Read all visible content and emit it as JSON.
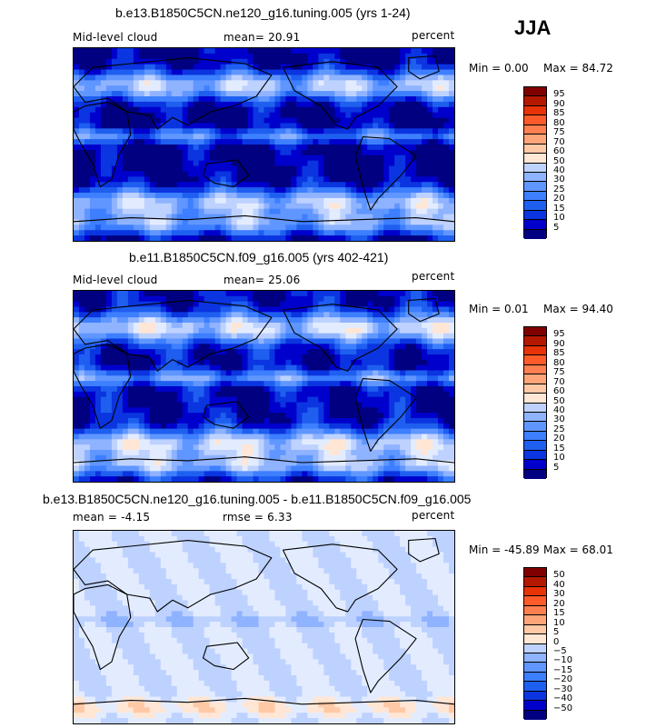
{
  "season": "JJA",
  "palette": {
    "diff": [
      "#000080",
      "#0000cd",
      "#0a35e0",
      "#1f5ff0",
      "#3d7fff",
      "#6096ff",
      "#8fb3ff",
      "#bed2ff",
      "#e3ecff",
      "#ffe6d5",
      "#ffc9a6",
      "#ffa57a",
      "#ff7f50",
      "#ff5a2a",
      "#e83308",
      "#b51800",
      "#800000"
    ],
    "abs": [
      "#000080",
      "#0000cd",
      "#0a35e0",
      "#1f5ff0",
      "#3d7fff",
      "#6096ff",
      "#8fb3ff",
      "#bed2ff",
      "#e3ecff",
      "#ffe6d5",
      "#ffc9a6",
      "#ffa57a",
      "#ff7f50",
      "#ff5a2a",
      "#e83308",
      "#b51800",
      "#800000"
    ]
  },
  "chart_data": [
    {
      "type": "heatmap",
      "title": "b.e13.B1850C5CN.ne120_g16.tuning.005 (yrs 1-24)",
      "variable_label": "Mid-level cloud",
      "stat_text": "mean=  20.91",
      "units": "percent",
      "min_text": "Min =   0.00",
      "max_text": "Max =  84.72",
      "min": 0.0,
      "max": 84.72,
      "mean": 20.91,
      "contour_levels": [
        "95",
        "90",
        "85",
        "80",
        "75",
        "70",
        "60",
        "50",
        "40",
        "30",
        "25",
        "20",
        "15",
        "10",
        "5"
      ],
      "map_style": "abs"
    },
    {
      "type": "heatmap",
      "title": "b.e11.B1850C5CN.f09_g16.005 (yrs 402-421)",
      "variable_label": "Mid-level cloud",
      "stat_text": "mean=  25.06",
      "units": "percent",
      "min_text": "Min =   0.01",
      "max_text": "Max =  94.40",
      "min": 0.01,
      "max": 94.4,
      "mean": 25.06,
      "contour_levels": [
        "95",
        "90",
        "85",
        "80",
        "75",
        "70",
        "60",
        "50",
        "40",
        "30",
        "25",
        "20",
        "15",
        "10",
        "5"
      ],
      "map_style": "abs"
    },
    {
      "type": "heatmap",
      "title": "b.e13.B1850C5CN.ne120_g16.tuning.005 - b.e11.B1850C5CN.f09_g16.005",
      "variable_label": "",
      "stat_text": "mean =   -4.15",
      "stat2_text": "rmse =    6.33",
      "units": "percent",
      "min_text": "Min = -45.89",
      "max_text": "Max =  68.01",
      "min": -45.89,
      "max": 68.01,
      "mean": -4.15,
      "rmse": 6.33,
      "contour_levels": [
        "50",
        "40",
        "30",
        "20",
        "15",
        "10",
        "5",
        "0",
        "−5",
        "−10",
        "−15",
        "−20",
        "−30",
        "−40",
        "−50"
      ],
      "map_style": "diff"
    }
  ]
}
